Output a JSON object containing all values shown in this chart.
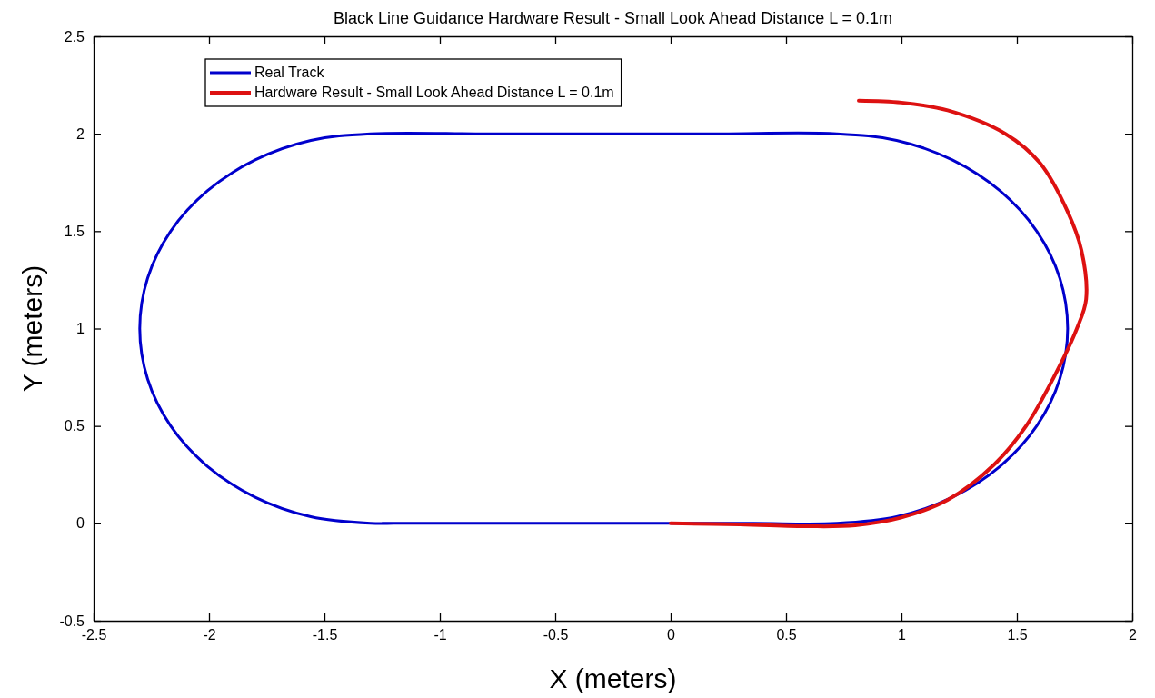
{
  "chart_data": {
    "type": "line",
    "title": "Black Line Guidance Hardware Result - Small Look Ahead Distance L = 0.1m",
    "xlabel": "X (meters)",
    "ylabel": "Y (meters)",
    "xlim": [
      -2.5,
      2
    ],
    "xticks": [
      -2.5,
      -2,
      -1.5,
      -1,
      -0.5,
      0,
      0.5,
      1,
      1.5,
      2
    ],
    "ylim": [
      -0.5,
      2.5
    ],
    "yticks": [
      -0.5,
      0,
      0.5,
      1,
      1.5,
      2,
      2.5
    ],
    "grid": false,
    "legend": "top left",
    "line_style": "solid",
    "marker": "none",
    "series": [
      {
        "name": "Real Track",
        "color": "#0000cc",
        "x": [
          -1.25,
          -0.65,
          0,
          0.36,
          0.72,
          0.979,
          1.22,
          1.427,
          1.586,
          1.686,
          1.72,
          1.686,
          1.586,
          1.427,
          1.22,
          0.979,
          0.72,
          0.2,
          -0.3,
          -0.8,
          -1.3,
          -1.559,
          -1.8,
          -2.007,
          -2.166,
          -2.266,
          -2.3,
          -2.266,
          -2.166,
          -2.007,
          -1.8,
          -1.559,
          -1.3,
          -1.2
        ],
        "values": [
          0,
          0,
          0,
          0,
          0,
          0.034,
          0.134,
          0.293,
          0.5,
          0.741,
          1,
          1.259,
          1.5,
          1.707,
          1.866,
          1.966,
          2,
          2,
          2,
          2,
          2,
          1.966,
          1.866,
          1.707,
          1.5,
          1.259,
          1,
          0.741,
          0.5,
          0.293,
          0.134,
          0.034,
          0,
          0
        ]
      },
      {
        "name": "Hardware Result - Small Look Ahead Distance L = 0.1m",
        "color": "#dd1111",
        "x": [
          0,
          0.3,
          0.6,
          0.8,
          1.0,
          1.2,
          1.4,
          1.54,
          1.66,
          1.76,
          1.8,
          1.78,
          1.72,
          1.6,
          1.45,
          1.2,
          1.0,
          0.815
        ],
        "values": [
          0,
          -0.005,
          -0.015,
          -0.01,
          0.03,
          0.12,
          0.3,
          0.5,
          0.75,
          1.0,
          1.15,
          1.4,
          1.6,
          1.85,
          2.0,
          2.12,
          2.16,
          2.17
        ]
      }
    ]
  }
}
